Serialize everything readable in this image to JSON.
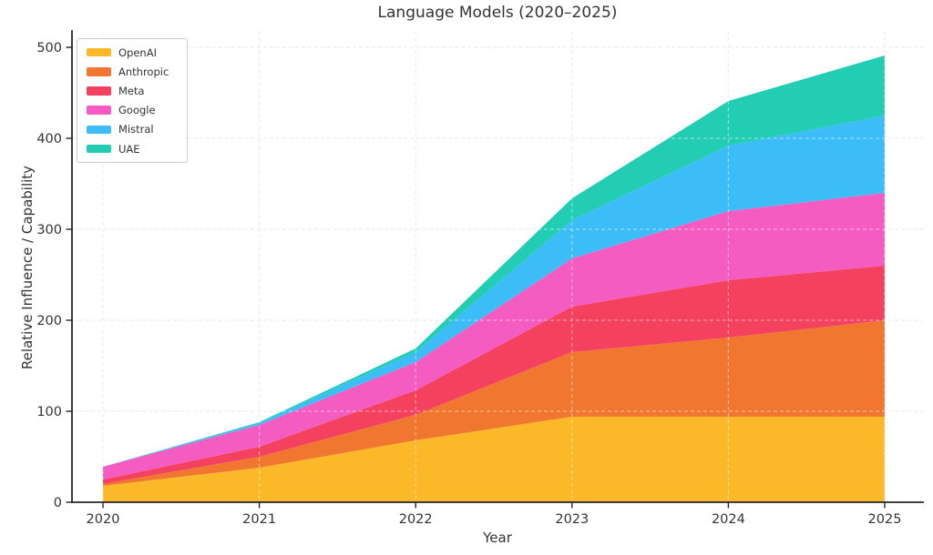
{
  "figure": {
    "background": "#ffffff",
    "text_color": "#333333",
    "spine_color": "#262626",
    "grid_color": "#e0e0e0"
  },
  "chart_data": {
    "type": "area",
    "stacked": true,
    "title": "Language Models (2020–2025)",
    "xlabel": "Year",
    "ylabel": "Relative Influence / Capability",
    "x": [
      2020,
      2021,
      2022,
      2023,
      2024,
      2025
    ],
    "x_tick_labels": [
      "2020",
      "2021",
      "2022",
      "2023",
      "2024",
      "2025"
    ],
    "y_ticks": [
      0,
      100,
      200,
      300,
      400,
      500
    ],
    "ylim": [
      0,
      518
    ],
    "grid": "dashed, both axes",
    "legend_position": "upper left",
    "series": [
      {
        "name": "OpenAI",
        "color": "#FBB828",
        "values": [
          18,
          38,
          68,
          94,
          94,
          94
        ]
      },
      {
        "name": "Anthropic",
        "color": "#F1762F",
        "values": [
          2,
          12,
          28,
          71,
          87,
          106
        ]
      },
      {
        "name": "Meta",
        "color": "#F4415F",
        "values": [
          5,
          11,
          27,
          50,
          63,
          60
        ]
      },
      {
        "name": "Google",
        "color": "#F45CC2",
        "values": [
          14,
          24,
          31,
          53,
          76,
          80
        ]
      },
      {
        "name": "Mistral",
        "color": "#3DBDF7",
        "values": [
          0,
          2,
          11,
          42,
          72,
          85
        ]
      },
      {
        "name": "UAE",
        "color": "#23CDB4",
        "values": [
          0,
          1,
          4,
          24,
          49,
          66
        ]
      }
    ]
  }
}
